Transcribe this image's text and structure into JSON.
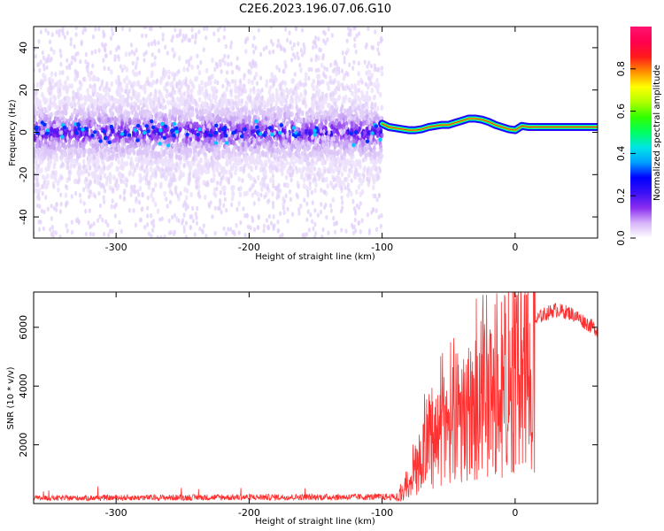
{
  "title": "C2E6.2023.196.07.06.G10",
  "chart_data": [
    {
      "type": "heatmap",
      "title": "C2E6.2023.196.07.06.G10",
      "xlabel": "Height of straight line (km)",
      "ylabel": "Frequency (Hz)",
      "xlim": [
        -362,
        62
      ],
      "ylim": [
        -50,
        50
      ],
      "x_ticks": [
        -300,
        -200,
        -100,
        0
      ],
      "x_tick_labels": [
        "-300",
        "-200",
        "-100",
        "0"
      ],
      "y_ticks": [
        -40,
        -20,
        0,
        20,
        40
      ],
      "y_tick_labels": [
        "-40",
        "-20",
        "0",
        "20",
        "40"
      ],
      "doppler_track": {
        "x": [
          -100,
          -95,
          -90,
          -85,
          -80,
          -75,
          -70,
          -65,
          -60,
          -55,
          -50,
          -45,
          -40,
          -35,
          -30,
          -25,
          -20,
          -15,
          -10,
          -5,
          0,
          5,
          10,
          20,
          30,
          40,
          50,
          62
        ],
        "y": [
          4,
          2.5,
          2,
          1.5,
          1,
          1,
          1.5,
          2.5,
          3,
          3.5,
          3.5,
          4.5,
          5.5,
          6.5,
          6.5,
          6,
          5,
          3.5,
          2.5,
          1.5,
          1,
          3,
          2.5,
          2.5,
          2.5,
          2.5,
          2.5,
          2.5
        ]
      },
      "noise_region_x": [
        -362,
        -100
      ],
      "colorbar": {
        "label": "Normalized spectral amplitude",
        "range": [
          0,
          1
        ],
        "ticks": [
          0.0,
          0.2,
          0.4,
          0.6,
          0.8
        ],
        "tick_labels": [
          "0.0",
          "0.2",
          "0.4",
          "0.6",
          "0.8"
        ],
        "colors": [
          "#ffffff",
          "#d7b4f8",
          "#8a2ef0",
          "#3a10f5",
          "#0000ff",
          "#00a0ff",
          "#00e5e5",
          "#00ff60",
          "#30ff00",
          "#b0ff00",
          "#ffff00",
          "#ff9000",
          "#ff1a1a",
          "#ff0050",
          "#ff1470"
        ]
      }
    },
    {
      "type": "line",
      "xlabel": "Height of straight line (km)",
      "ylabel": "SNR (10 * v/v)",
      "xlim": [
        -362,
        62
      ],
      "ylim": [
        0,
        7200
      ],
      "x_ticks": [
        -300,
        -200,
        -100,
        0
      ],
      "x_tick_labels": [
        "-300",
        "-200",
        "-100",
        "0"
      ],
      "y_ticks": [
        2000,
        4000,
        6000
      ],
      "y_tick_labels": [
        "2000",
        "4000",
        "6000"
      ],
      "color": "#ff3030",
      "series": [
        {
          "x": [
            -362,
            -300,
            -200,
            -100,
            -90,
            -85,
            -80,
            -75,
            -70,
            -65,
            -60,
            -55,
            -50,
            -45,
            -40,
            -35,
            -30,
            -25,
            -20,
            -15,
            -10,
            -5,
            0,
            5,
            10,
            15,
            20,
            25,
            30,
            35,
            40,
            45,
            50,
            55,
            62
          ],
          "y": [
            200,
            220,
            240,
            250,
            250,
            500,
            900,
            1600,
            2300,
            2800,
            3100,
            3400,
            3600,
            3800,
            4000,
            4300,
            4600,
            4900,
            5100,
            5300,
            5500,
            5600,
            5800,
            5900,
            6000,
            6200,
            6400,
            6500,
            6600,
            6550,
            6500,
            6400,
            6250,
            6100,
            5900
          ]
        }
      ]
    }
  ]
}
